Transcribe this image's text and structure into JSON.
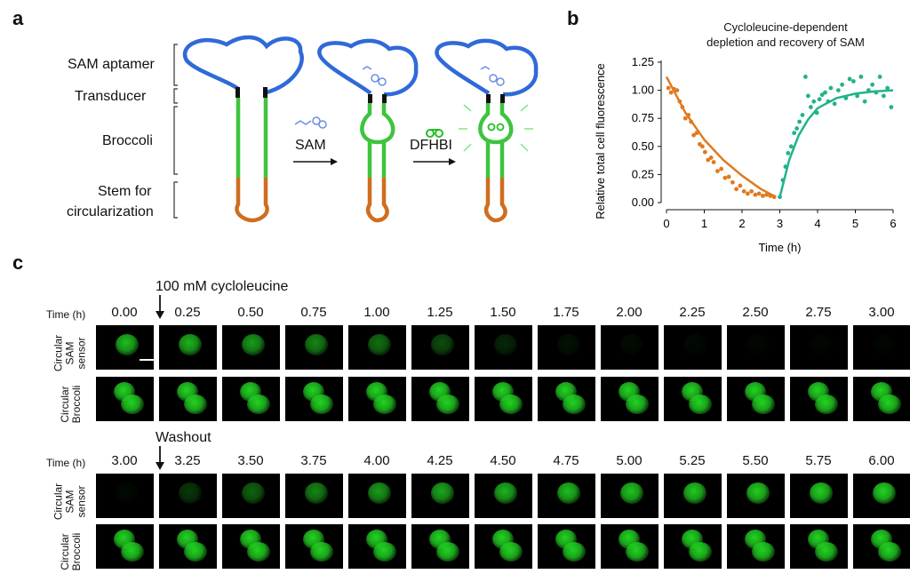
{
  "panel_a": {
    "letter": "a",
    "labels": [
      "SAM aptamer",
      "Transducer",
      "Broccoli",
      "Stem for",
      "circularization"
    ],
    "arrow1_label": "SAM",
    "arrow2_label": "DFHBI"
  },
  "panel_b": {
    "letter": "b",
    "title_line1": "Cycloleucine-dependent",
    "title_line2": "depletion and recovery of SAM"
  },
  "chart_data": {
    "type": "scatter",
    "title": "Cycloleucine-dependent depletion and recovery of SAM",
    "xlabel": "Time (h)",
    "ylabel": "Relative total cell fluorescence",
    "xlim": [
      0,
      6
    ],
    "ylim": [
      0,
      1.25
    ],
    "xticks": [
      0,
      1,
      2,
      3,
      4,
      5,
      6
    ],
    "yticks": [
      "0.00",
      "0.25",
      "0.50",
      "0.75",
      "1.00",
      "1.25"
    ],
    "colors": {
      "depletion": "#e07a20",
      "recovery": "#21b38a"
    },
    "depletion_points": [
      [
        0.05,
        1.02
      ],
      [
        0.12,
        0.98
      ],
      [
        0.2,
        1.01
      ],
      [
        0.28,
        1.0
      ],
      [
        0.35,
        0.9
      ],
      [
        0.42,
        0.85
      ],
      [
        0.5,
        0.75
      ],
      [
        0.58,
        0.78
      ],
      [
        0.65,
        0.72
      ],
      [
        0.72,
        0.6
      ],
      [
        0.8,
        0.62
      ],
      [
        0.88,
        0.52
      ],
      [
        0.95,
        0.5
      ],
      [
        1.02,
        0.45
      ],
      [
        1.1,
        0.38
      ],
      [
        1.18,
        0.4
      ],
      [
        1.25,
        0.36
      ],
      [
        1.35,
        0.28
      ],
      [
        1.45,
        0.3
      ],
      [
        1.55,
        0.22
      ],
      [
        1.65,
        0.23
      ],
      [
        1.75,
        0.18
      ],
      [
        1.85,
        0.12
      ],
      [
        1.95,
        0.15
      ],
      [
        2.05,
        0.1
      ],
      [
        2.15,
        0.08
      ],
      [
        2.25,
        0.1
      ],
      [
        2.35,
        0.07
      ],
      [
        2.45,
        0.08
      ],
      [
        2.55,
        0.06
      ],
      [
        2.65,
        0.07
      ],
      [
        2.75,
        0.06
      ],
      [
        2.85,
        0.05
      ]
    ],
    "recovery_points": [
      [
        3.0,
        0.05
      ],
      [
        3.08,
        0.2
      ],
      [
        3.15,
        0.32
      ],
      [
        3.22,
        0.44
      ],
      [
        3.3,
        0.5
      ],
      [
        3.38,
        0.62
      ],
      [
        3.45,
        0.66
      ],
      [
        3.52,
        0.72
      ],
      [
        3.6,
        0.78
      ],
      [
        3.68,
        1.12
      ],
      [
        3.75,
        0.95
      ],
      [
        3.82,
        0.85
      ],
      [
        3.9,
        0.9
      ],
      [
        3.98,
        0.8
      ],
      [
        4.05,
        0.92
      ],
      [
        4.12,
        0.96
      ],
      [
        4.2,
        0.98
      ],
      [
        4.28,
        0.9
      ],
      [
        4.35,
        1.02
      ],
      [
        4.45,
        0.88
      ],
      [
        4.55,
        1.0
      ],
      [
        4.65,
        1.05
      ],
      [
        4.75,
        0.93
      ],
      [
        4.85,
        1.1
      ],
      [
        4.95,
        1.08
      ],
      [
        5.05,
        0.95
      ],
      [
        5.15,
        1.12
      ],
      [
        5.25,
        0.9
      ],
      [
        5.35,
        1.0
      ],
      [
        5.45,
        1.05
      ],
      [
        5.55,
        0.98
      ],
      [
        5.65,
        1.12
      ],
      [
        5.75,
        0.95
      ],
      [
        5.85,
        1.02
      ],
      [
        5.95,
        0.85
      ]
    ],
    "depletion_fit": [
      [
        0,
        1.12
      ],
      [
        0.5,
        0.8
      ],
      [
        1,
        0.56
      ],
      [
        1.5,
        0.38
      ],
      [
        2,
        0.24
      ],
      [
        2.5,
        0.12
      ],
      [
        2.9,
        0.05
      ]
    ],
    "recovery_fit": [
      [
        3,
        0.05
      ],
      [
        3.25,
        0.38
      ],
      [
        3.5,
        0.6
      ],
      [
        3.75,
        0.74
      ],
      [
        4,
        0.84
      ],
      [
        4.5,
        0.93
      ],
      [
        5,
        0.97
      ],
      [
        5.5,
        0.99
      ],
      [
        6,
        1.0
      ]
    ]
  },
  "panel_c": {
    "letter": "c",
    "treatment_label": "100 mM cycloleucine",
    "washout_label": "Washout",
    "time_header": "Time (h)",
    "times_top": [
      "0.00",
      "0.25",
      "0.50",
      "0.75",
      "1.00",
      "1.25",
      "1.50",
      "1.75",
      "2.00",
      "2.25",
      "2.50",
      "2.75",
      "3.00"
    ],
    "times_bottom": [
      "3.00",
      "3.25",
      "3.50",
      "3.75",
      "4.00",
      "4.25",
      "4.50",
      "4.75",
      "5.00",
      "5.25",
      "5.50",
      "5.75",
      "6.00"
    ],
    "row1_label_line1": "Circular",
    "row1_label_line2": "SAM",
    "row1_label_line3": "sensor",
    "row2_label_line1": "Circular",
    "row2_label_line2": "Broccoli",
    "sam_top_brightness": [
      0.85,
      0.8,
      0.7,
      0.6,
      0.5,
      0.35,
      0.18,
      0.08,
      0.05,
      0.04,
      0.03,
      0.03,
      0.03
    ],
    "sam_bottom_brightness": [
      0.04,
      0.25,
      0.45,
      0.6,
      0.7,
      0.75,
      0.8,
      0.85,
      0.88,
      0.9,
      0.92,
      0.93,
      0.95
    ],
    "green": "#22e022"
  }
}
